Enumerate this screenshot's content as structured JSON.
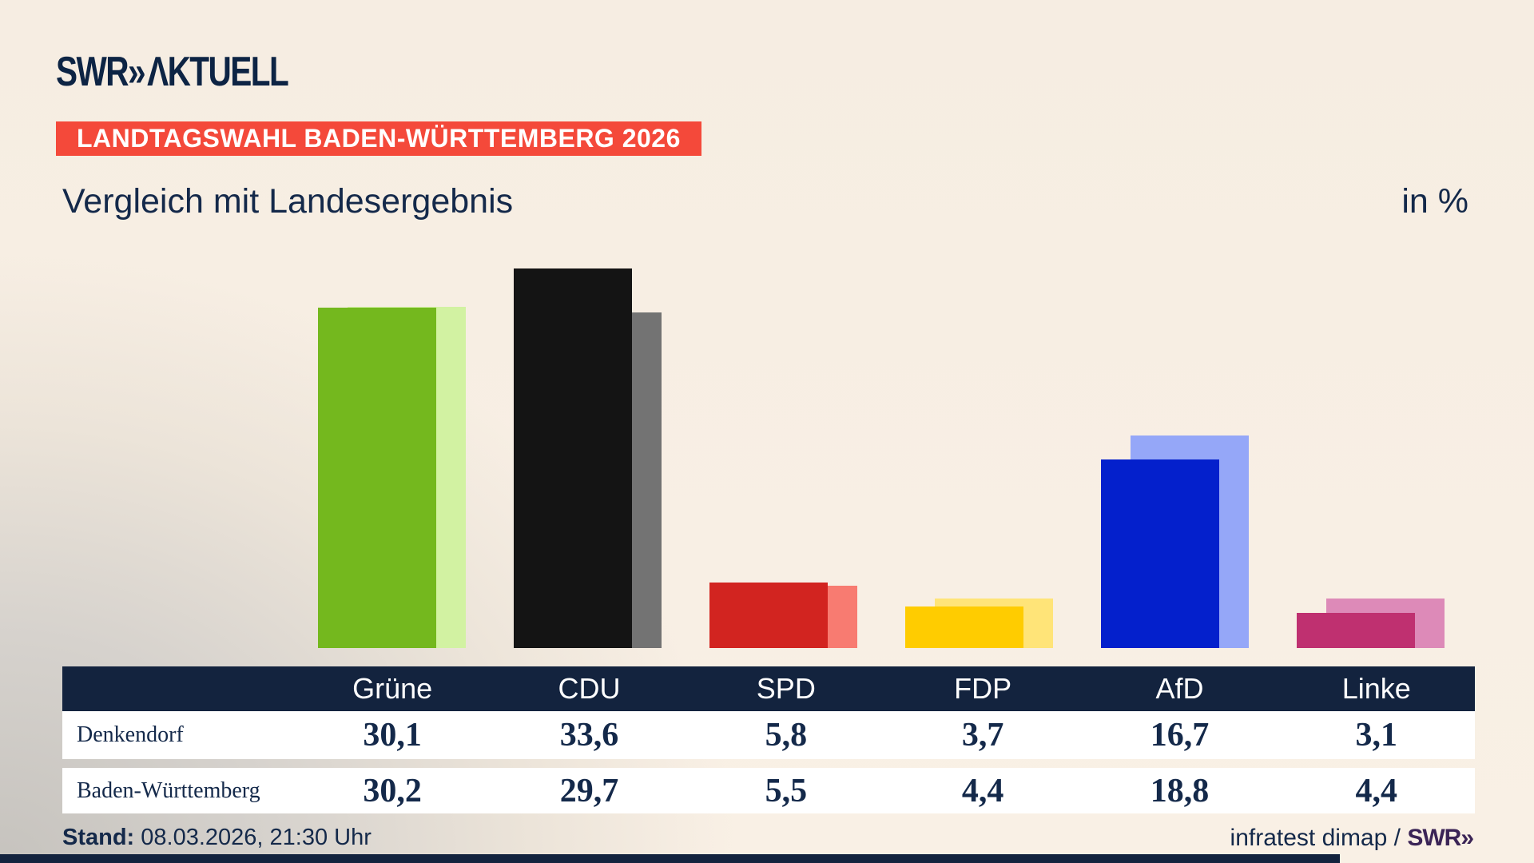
{
  "brand": {
    "swr": "SWR",
    "chevron": "»",
    "suffix": "ΛKTUELL"
  },
  "badge": "LANDTAGSWAHL BADEN-WÜRTTEMBERG 2026",
  "title": "Vergleich mit Landesergebnis",
  "unit": "in %",
  "chart_data": {
    "type": "bar",
    "categories": [
      "Grüne",
      "CDU",
      "SPD",
      "FDP",
      "AfD",
      "Linke"
    ],
    "series": [
      {
        "name": "Denkendorf",
        "values": [
          30.1,
          33.6,
          5.8,
          3.7,
          16.7,
          3.1
        ]
      },
      {
        "name": "Baden-Württemberg",
        "values": [
          30.2,
          29.7,
          5.5,
          4.4,
          18.8,
          4.4
        ]
      }
    ],
    "bar_colors_denkendorf": [
      "#74b81e",
      "#141414",
      "#d22420",
      "#ffcc00",
      "#0420cc",
      "#bf3070"
    ],
    "bar_colors_land": [
      "#d2f2a2",
      "#737373",
      "#f87b71",
      "#ffe478",
      "#95a7f8",
      "#dd8ab8"
    ],
    "unit": "%",
    "ylim": [
      0,
      35
    ],
    "grid": false,
    "legend": "table-below",
    "title": "Vergleich mit Landesergebnis"
  },
  "table": {
    "header": [
      "Grüne",
      "CDU",
      "SPD",
      "FDP",
      "AfD",
      "Linke"
    ],
    "rows": [
      {
        "label": "Denkendorf",
        "values": [
          "30,1",
          "33,6",
          "5,8",
          "3,7",
          "16,7",
          "3,1"
        ]
      },
      {
        "label": "Baden-Württemberg",
        "values": [
          "30,2",
          "29,7",
          "5,5",
          "4,4",
          "18,8",
          "4,4"
        ]
      }
    ]
  },
  "footer": {
    "stand_label": "Stand:",
    "stand_value": " 08.03.2026, 21:30 Uhr",
    "credit": "infratest dimap / ",
    "credit_brand": "SWR",
    "credit_chevron": "»"
  },
  "colors": {
    "accent_red": "#f4493a",
    "navy": "#13233e",
    "brand_navy": "#0d2444",
    "credit_purple": "#3b2456"
  }
}
